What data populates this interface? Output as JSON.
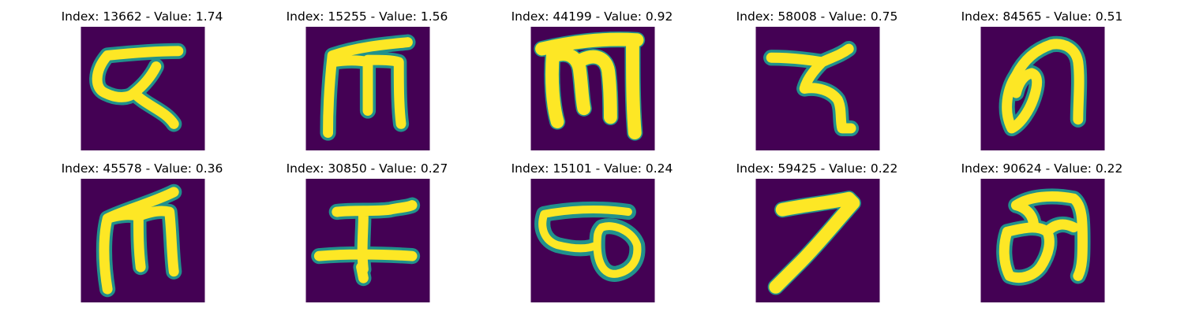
{
  "figure": {
    "panels": [
      {
        "title": "Index: 13662 - Value: 1.74",
        "background_color": "#440154",
        "stroke_color": "#fde725",
        "edge_color": "#21918c",
        "glyph": "glyph-1"
      },
      {
        "title": "Index: 15255 - Value: 1.56",
        "background_color": "#440154",
        "stroke_color": "#fde725",
        "edge_color": "#21918c",
        "glyph": "glyph-2"
      },
      {
        "title": "Index: 44199 - Value: 0.92",
        "background_color": "#440154",
        "stroke_color": "#fde725",
        "edge_color": "#21918c",
        "glyph": "glyph-3"
      },
      {
        "title": "Index: 58008 - Value: 0.75",
        "background_color": "#440154",
        "stroke_color": "#fde725",
        "edge_color": "#21918c",
        "glyph": "glyph-4"
      },
      {
        "title": "Index: 84565 - Value: 0.51",
        "background_color": "#440154",
        "stroke_color": "#fde725",
        "edge_color": "#21918c",
        "glyph": "glyph-5"
      },
      {
        "title": "Index: 45578 - Value: 0.36",
        "background_color": "#440154",
        "stroke_color": "#fde725",
        "edge_color": "#21918c",
        "glyph": "glyph-6"
      },
      {
        "title": "Index: 30850 - Value: 0.27",
        "background_color": "#440154",
        "stroke_color": "#fde725",
        "edge_color": "#21918c",
        "glyph": "glyph-7"
      },
      {
        "title": "Index: 15101 - Value: 0.24",
        "background_color": "#440154",
        "stroke_color": "#fde725",
        "edge_color": "#21918c",
        "glyph": "glyph-8"
      },
      {
        "title": "Index: 59425 - Value: 0.22",
        "background_color": "#440154",
        "stroke_color": "#fde725",
        "edge_color": "#21918c",
        "glyph": "glyph-9"
      },
      {
        "title": "Index: 90624 - Value: 0.22",
        "background_color": "#440154",
        "stroke_color": "#fde725",
        "edge_color": "#21918c",
        "glyph": "glyph-10"
      }
    ]
  }
}
